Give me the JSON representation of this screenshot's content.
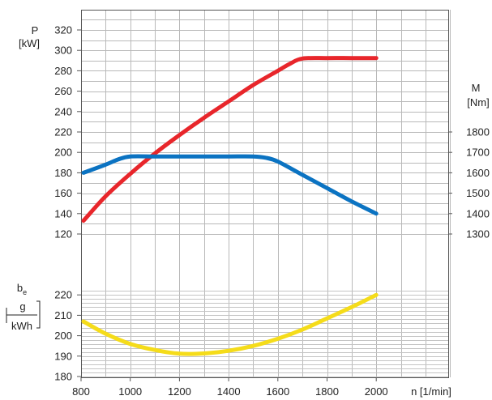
{
  "chart_data": {
    "type": "line",
    "x_axis": {
      "label": "n [1/min]",
      "ticks": [
        "800",
        "1000",
        "1200",
        "1400",
        "1600",
        "1800",
        "2000"
      ],
      "range": [
        800,
        2000
      ]
    },
    "power_axis": {
      "label_line1": "P",
      "label_line2": "[kW]",
      "ticks": [
        "320",
        "300",
        "280",
        "260",
        "240",
        "220",
        "200",
        "180",
        "160",
        "140",
        "120"
      ],
      "range": [
        120,
        320
      ]
    },
    "torque_axis": {
      "label_line1": "M",
      "label_line2": "[Nm]",
      "ticks": [
        "1800",
        "1700",
        "1600",
        "1500",
        "1400",
        "1300"
      ],
      "range": [
        1300,
        1800
      ]
    },
    "consumption_axis": {
      "label_line1": "b",
      "label_sub": "e",
      "label_num": "g",
      "label_den": "kWh",
      "ticks": [
        "220",
        "210",
        "200",
        "190",
        "180"
      ],
      "range": [
        180,
        220
      ]
    },
    "series": [
      {
        "axis": "power",
        "color": "#e8262b",
        "x": [
          810,
          900,
          1000,
          1100,
          1200,
          1300,
          1400,
          1500,
          1600,
          1650,
          1700,
          1800,
          1900,
          2000
        ],
        "y": [
          133,
          157,
          179,
          199,
          217,
          234,
          250,
          266,
          280,
          287,
          292,
          292.5,
          292.5,
          292.5
        ]
      },
      {
        "axis": "torque",
        "color": "#0b73c2",
        "x": [
          810,
          900,
          950,
          1000,
          1100,
          1200,
          1300,
          1400,
          1500,
          1550,
          1600,
          1700,
          1800,
          1900,
          2000
        ],
        "y": [
          1600,
          1640,
          1665,
          1680,
          1680,
          1680,
          1680,
          1680,
          1680,
          1674,
          1655,
          1590,
          1525,
          1460,
          1400
        ]
      },
      {
        "axis": "consumption",
        "color": "#f5dc1a",
        "x": [
          810,
          900,
          1000,
          1100,
          1200,
          1300,
          1400,
          1500,
          1600,
          1700,
          1800,
          1900,
          2000
        ],
        "y": [
          207,
          201,
          196,
          193,
          191.2,
          191.3,
          192.6,
          195,
          198.5,
          203,
          208.5,
          214,
          220
        ]
      }
    ]
  }
}
